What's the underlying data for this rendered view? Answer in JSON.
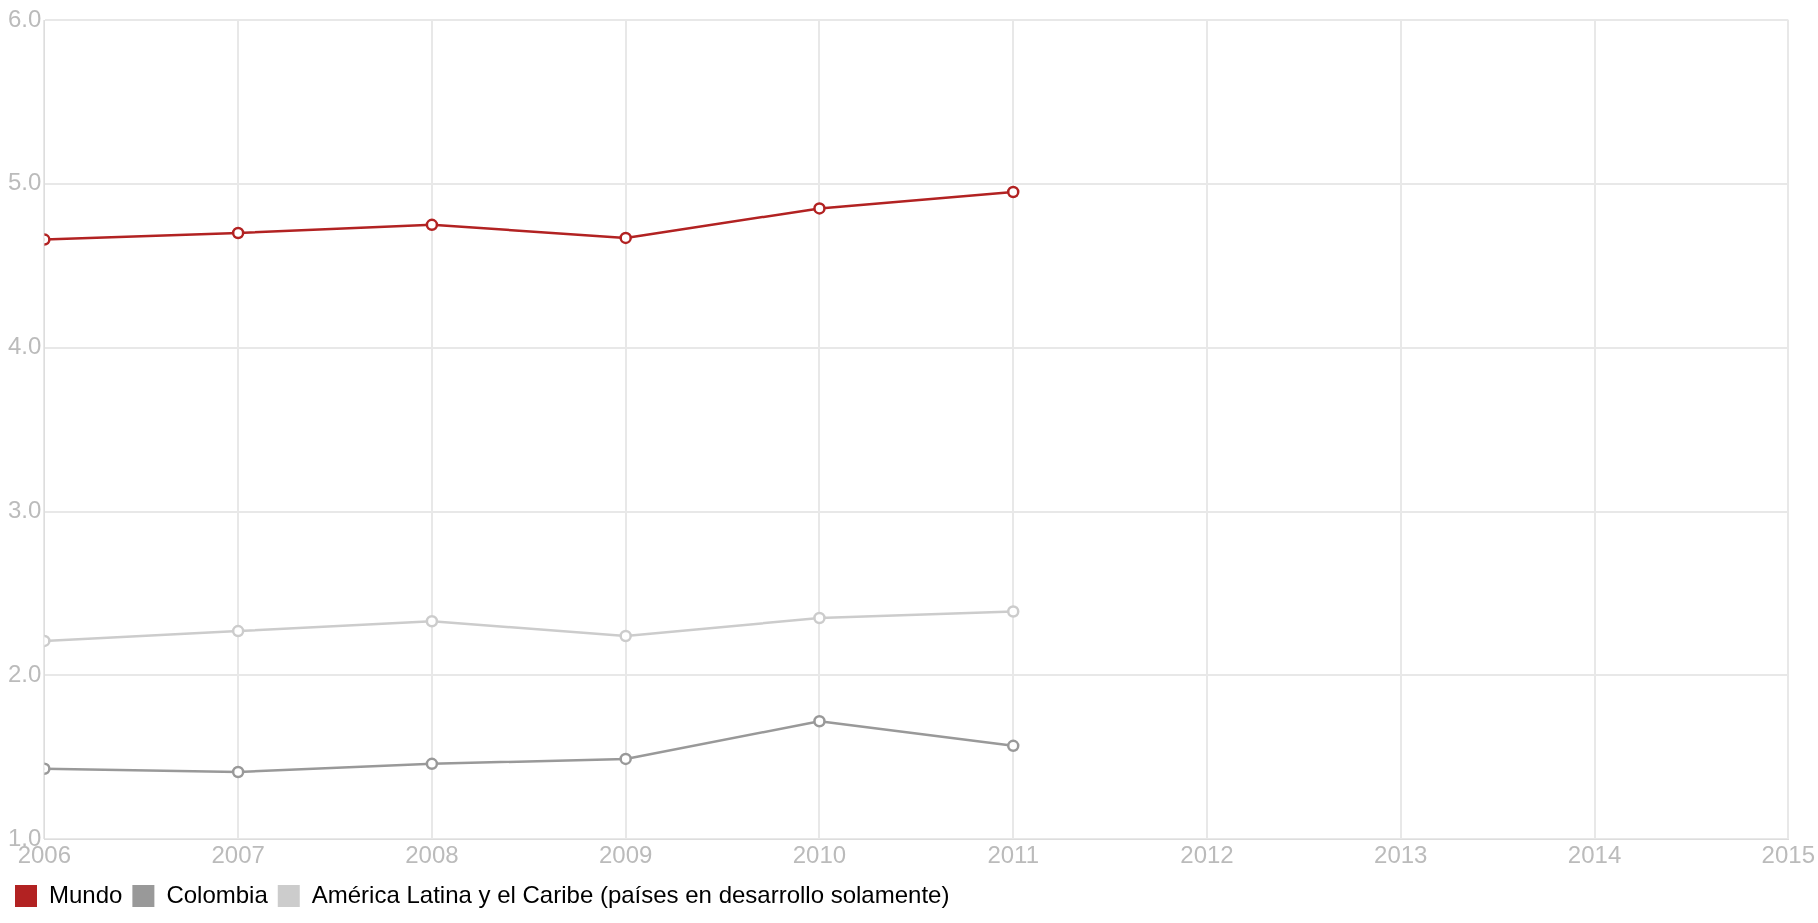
{
  "chart_data": {
    "type": "line",
    "x": [
      2006,
      2007,
      2008,
      2009,
      2010,
      2011
    ],
    "xlim": [
      2006,
      2015
    ],
    "xticks": [
      2006,
      2007,
      2008,
      2009,
      2010,
      2011,
      2012,
      2013,
      2014,
      2015
    ],
    "ylim": [
      1,
      6
    ],
    "yticks": [
      {
        "value": 1,
        "label": "1.0"
      },
      {
        "value": 2,
        "label": "2.0"
      },
      {
        "value": 3,
        "label": "3.0"
      },
      {
        "value": 4,
        "label": "4.0"
      },
      {
        "value": 5,
        "label": "5.0"
      },
      {
        "value": 6,
        "label": "6.0"
      }
    ],
    "grid": true,
    "legend": "bottom left",
    "marker": "circle",
    "series": [
      {
        "name": "Mundo",
        "color": "#b22222",
        "values": [
          4.66,
          4.7,
          4.75,
          4.67,
          4.85,
          4.95
        ]
      },
      {
        "name": "Colombia",
        "color": "#999999",
        "values": [
          1.43,
          1.41,
          1.46,
          1.49,
          1.72,
          1.57
        ]
      },
      {
        "name": "América Latina y el Caribe (países en desarrollo solamente)",
        "color": "#cccccc",
        "values": [
          2.21,
          2.27,
          2.33,
          2.24,
          2.35,
          2.39
        ]
      }
    ]
  }
}
